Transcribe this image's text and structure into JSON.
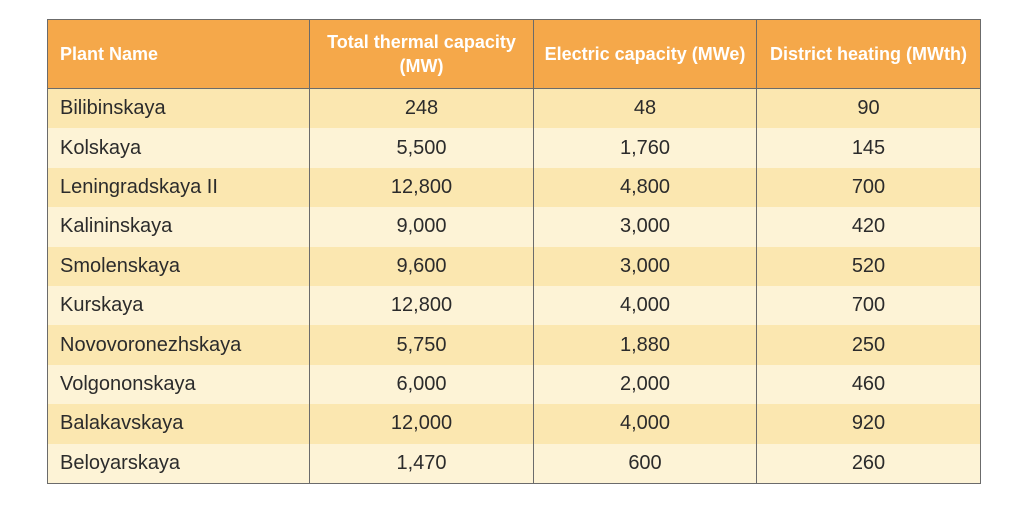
{
  "table": {
    "headers": [
      "Plant Name",
      "Total thermal capacity (MW)",
      "Electric capacity (MWe)",
      "District heating (MWth)"
    ],
    "rows": [
      [
        "Bilibinskaya",
        "248",
        "48",
        "90"
      ],
      [
        "Kolskaya",
        "5,500",
        "1,760",
        "145"
      ],
      [
        "Leningradskaya II",
        "12,800",
        "4,800",
        "700"
      ],
      [
        "Kalininskaya",
        "9,000",
        "3,000",
        "420"
      ],
      [
        "Smolenskaya",
        "9,600",
        "3,000",
        "520"
      ],
      [
        "Kurskaya",
        "12,800",
        "4,000",
        "700"
      ],
      [
        "Novovoronezhskaya",
        "5,750",
        "1,880",
        "250"
      ],
      [
        "Volgononskaya",
        "6,000",
        "2,000",
        "460"
      ],
      [
        "Balakavskaya",
        "12,000",
        "4,000",
        "920"
      ],
      [
        "Beloyarskaya",
        "1,470",
        "600",
        "260"
      ]
    ]
  },
  "colors": {
    "header_bg": "#f5a84a",
    "header_text": "#ffffff",
    "row_odd": "#fbe7b0",
    "row_even": "#fdf3d6",
    "border": "#6b6b6b"
  }
}
